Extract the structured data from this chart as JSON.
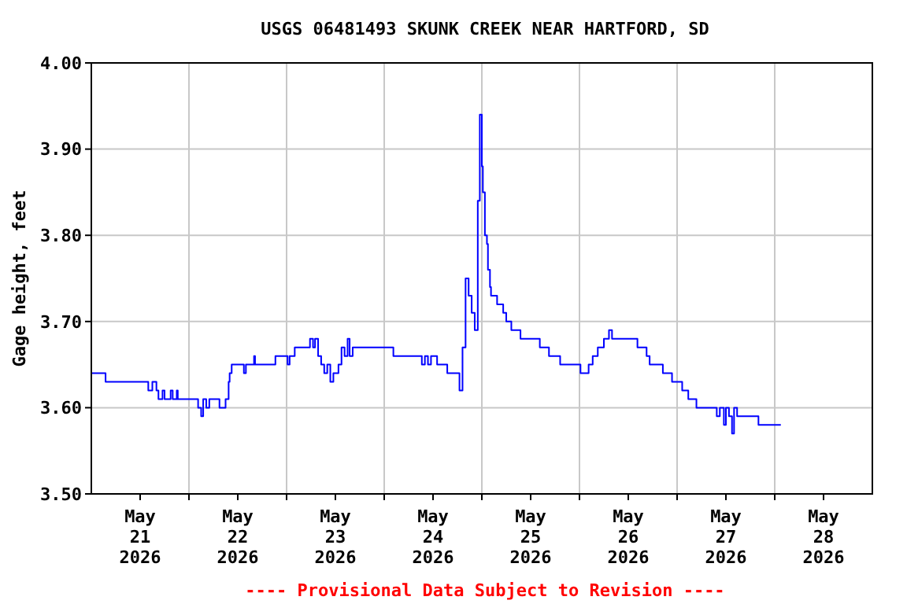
{
  "chart_data": {
    "type": "step",
    "title": "USGS 06481493 SKUNK CREEK NEAR HARTFORD, SD",
    "ylabel": "Gage height, feet",
    "annotations": [
      "---- Provisional Data Subject to Revision ----"
    ],
    "xlim": [
      "2026-05-21T00:00",
      "2026-05-29T00:00"
    ],
    "xticks": [
      {
        "value": "2026-05-21T12:00",
        "label": "May\n21\n2026"
      },
      {
        "value": "2026-05-22T00:00",
        "label": null
      },
      {
        "value": "2026-05-22T12:00",
        "label": "May\n22\n2026"
      },
      {
        "value": "2026-05-23T00:00",
        "label": null
      },
      {
        "value": "2026-05-23T12:00",
        "label": "May\n23\n2026"
      },
      {
        "value": "2026-05-24T00:00",
        "label": null
      },
      {
        "value": "2026-05-24T12:00",
        "label": "May\n24\n2026"
      },
      {
        "value": "2026-05-25T00:00",
        "label": null
      },
      {
        "value": "2026-05-25T12:00",
        "label": "May\n25\n2026"
      },
      {
        "value": "2026-05-26T00:00",
        "label": null
      },
      {
        "value": "2026-05-26T12:00",
        "label": "May\n26\n2026"
      },
      {
        "value": "2026-05-27T00:00",
        "label": null
      },
      {
        "value": "2026-05-27T12:00",
        "label": "May\n27\n2026"
      },
      {
        "value": "2026-05-28T00:00",
        "label": null
      },
      {
        "value": "2026-05-28T12:00",
        "label": "May\n28\n2026"
      }
    ],
    "ylim": [
      3.5,
      4.0
    ],
    "yticks": [
      {
        "value": 3.5,
        "label": "3.50"
      },
      {
        "value": 3.6,
        "label": "3.60"
      },
      {
        "value": 3.7,
        "label": "3.70"
      },
      {
        "value": 3.8,
        "label": "3.80"
      },
      {
        "value": 3.9,
        "label": "3.90"
      },
      {
        "value": 4.0,
        "label": "4.00"
      }
    ],
    "grid": true,
    "series": [
      {
        "color": "#0000ff",
        "x": [
          "2026-05-21T00:00",
          "2026-05-21T03:30",
          "2026-05-21T14:00",
          "2026-05-21T15:00",
          "2026-05-21T16:00",
          "2026-05-21T16:30",
          "2026-05-21T17:30",
          "2026-05-21T18:00",
          "2026-05-21T19:30",
          "2026-05-21T20:00",
          "2026-05-21T21:00",
          "2026-05-21T21:15",
          "2026-05-22T02:15",
          "2026-05-22T03:00",
          "2026-05-22T03:30",
          "2026-05-22T04:15",
          "2026-05-22T05:00",
          "2026-05-22T07:30",
          "2026-05-22T09:00",
          "2026-05-22T09:45",
          "2026-05-22T10:00",
          "2026-05-22T10:30",
          "2026-05-22T13:30",
          "2026-05-22T14:00",
          "2026-05-22T16:00",
          "2026-05-22T16:15",
          "2026-05-22T21:15",
          "2026-05-23T00:15",
          "2026-05-23T00:45",
          "2026-05-23T02:00",
          "2026-05-23T05:45",
          "2026-05-23T06:30",
          "2026-05-23T07:00",
          "2026-05-23T07:45",
          "2026-05-23T08:30",
          "2026-05-23T09:15",
          "2026-05-23T10:00",
          "2026-05-23T10:45",
          "2026-05-23T11:30",
          "2026-05-23T12:45",
          "2026-05-23T13:30",
          "2026-05-23T14:15",
          "2026-05-23T15:00",
          "2026-05-23T15:30",
          "2026-05-23T16:15",
          "2026-05-24T02:15",
          "2026-05-24T09:15",
          "2026-05-24T10:00",
          "2026-05-24T10:45",
          "2026-05-24T11:30",
          "2026-05-24T13:00",
          "2026-05-24T15:30",
          "2026-05-24T18:30",
          "2026-05-24T19:15",
          "2026-05-24T20:00",
          "2026-05-24T20:45",
          "2026-05-24T21:30",
          "2026-05-24T22:15",
          "2026-05-24T23:00",
          "2026-05-24T23:30",
          "2026-05-25T00:00",
          "2026-05-25T00:15",
          "2026-05-25T00:45",
          "2026-05-25T01:15",
          "2026-05-25T01:30",
          "2026-05-25T02:00",
          "2026-05-25T02:15",
          "2026-05-25T03:45",
          "2026-05-25T05:15",
          "2026-05-25T06:00",
          "2026-05-25T07:15",
          "2026-05-25T09:30",
          "2026-05-25T14:15",
          "2026-05-25T16:30",
          "2026-05-25T19:15",
          "2026-05-26T00:15",
          "2026-05-26T02:15",
          "2026-05-26T03:15",
          "2026-05-26T04:30",
          "2026-05-26T06:00",
          "2026-05-26T07:15",
          "2026-05-26T08:00",
          "2026-05-26T14:15",
          "2026-05-26T16:30",
          "2026-05-26T17:15",
          "2026-05-26T20:30",
          "2026-05-26T22:45",
          "2026-05-27T01:15",
          "2026-05-27T02:45",
          "2026-05-27T04:45",
          "2026-05-27T09:45",
          "2026-05-27T10:30",
          "2026-05-27T11:30",
          "2026-05-27T12:00",
          "2026-05-27T12:45",
          "2026-05-27T13:30",
          "2026-05-27T14:00",
          "2026-05-27T14:45",
          "2026-05-27T20:00",
          "2026-05-28T01:30"
        ],
        "values": [
          3.64,
          3.63,
          3.62,
          3.63,
          3.62,
          3.61,
          3.62,
          3.61,
          3.62,
          3.61,
          3.62,
          3.61,
          3.6,
          3.59,
          3.61,
          3.6,
          3.61,
          3.6,
          3.61,
          3.63,
          3.64,
          3.65,
          3.64,
          3.65,
          3.66,
          3.65,
          3.66,
          3.65,
          3.66,
          3.67,
          3.68,
          3.67,
          3.68,
          3.66,
          3.65,
          3.64,
          3.65,
          3.63,
          3.64,
          3.65,
          3.67,
          3.66,
          3.68,
          3.66,
          3.67,
          3.66,
          3.65,
          3.66,
          3.65,
          3.66,
          3.65,
          3.64,
          3.62,
          3.67,
          3.75,
          3.73,
          3.71,
          3.69,
          3.84,
          3.94,
          3.88,
          3.85,
          3.8,
          3.79,
          3.76,
          3.74,
          3.73,
          3.72,
          3.71,
          3.7,
          3.69,
          3.68,
          3.67,
          3.66,
          3.65,
          3.64,
          3.65,
          3.66,
          3.67,
          3.68,
          3.69,
          3.68,
          3.67,
          3.66,
          3.65,
          3.64,
          3.63,
          3.62,
          3.61,
          3.6,
          3.59,
          3.6,
          3.58,
          3.6,
          3.59,
          3.57,
          3.6,
          3.59,
          3.58,
          3.58
        ]
      }
    ]
  }
}
